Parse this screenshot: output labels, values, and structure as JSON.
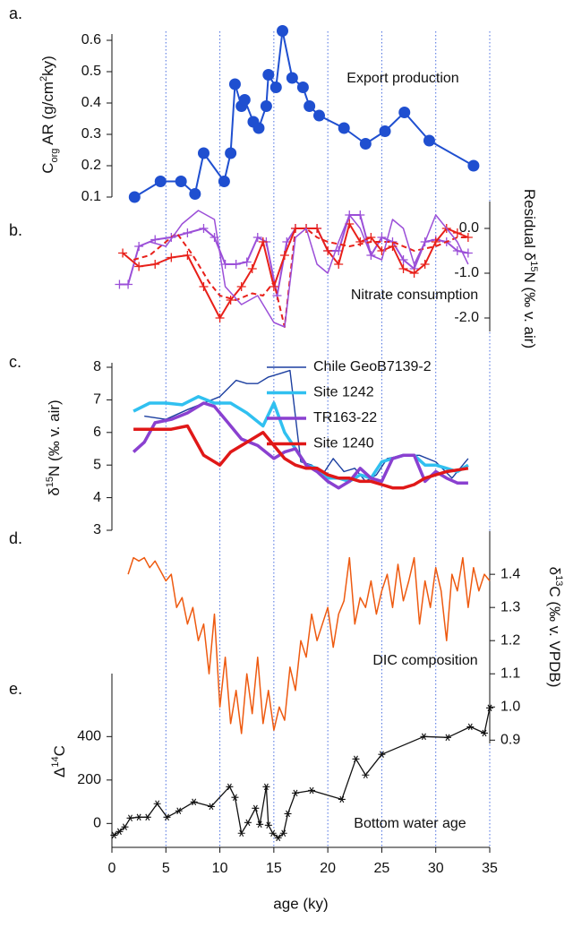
{
  "chart_data": [
    {
      "type": "line",
      "label": "a.",
      "annotation": "Export production",
      "ylabel": [
        "C",
        "org",
        " AR (g/cm",
        "2",
        "ky)"
      ],
      "xlim": [
        0,
        35
      ],
      "ylim": [
        0.1,
        0.64
      ],
      "yticks": [
        0.1,
        0.2,
        0.3,
        0.4,
        0.5,
        0.6
      ],
      "series": [
        {
          "color": "#1f4fd0",
          "marker": "circle",
          "x": [
            2.1,
            4.5,
            6.4,
            7.7,
            8.5,
            10.4,
            11.0,
            11.4,
            12.0,
            12.3,
            13.1,
            13.6,
            14.3,
            14.5,
            15.2,
            15.8,
            16.7,
            17.7,
            18.3,
            19.2,
            21.5,
            23.5,
            25.3,
            27.1,
            29.4,
            33.5
          ],
          "values": [
            0.1,
            0.15,
            0.15,
            0.11,
            0.24,
            0.15,
            0.24,
            0.46,
            0.39,
            0.41,
            0.34,
            0.32,
            0.39,
            0.49,
            0.45,
            0.63,
            0.48,
            0.45,
            0.39,
            0.36,
            0.32,
            0.27,
            0.31,
            0.37,
            0.28,
            0.2
          ]
        }
      ]
    },
    {
      "type": "line",
      "label": "b.",
      "annotation": "Nitrate consumption",
      "ylabel": [
        "Residual δ",
        "15",
        "N (‰ v. air)"
      ],
      "xlim": [
        0,
        35
      ],
      "ylim": [
        -2.3,
        0.6
      ],
      "yticks": [
        {
          "value": 0,
          "label": "0.0"
        },
        {
          "value": -1,
          "label": "-1.0"
        },
        {
          "value": -2,
          "label": "-2.0"
        }
      ],
      "series": [
        {
          "color": "#9b4fd8",
          "marker": "plus",
          "x": [
            0.7,
            1.5,
            2.5,
            4,
            5.5,
            7,
            8.5,
            9.5,
            10.5,
            11.5,
            12.5,
            13.5,
            14.3,
            15.3,
            16.2,
            17,
            18,
            19,
            20,
            21,
            22,
            23,
            24,
            25,
            26,
            27,
            28,
            29,
            30,
            31,
            32,
            33
          ],
          "values": [
            -1.25,
            -1.25,
            -0.4,
            -0.25,
            -0.2,
            -0.1,
            0.0,
            -0.2,
            -0.8,
            -0.8,
            -0.75,
            -0.2,
            -0.3,
            -1.5,
            -0.3,
            0.0,
            0.0,
            0.0,
            -0.5,
            -0.5,
            0.3,
            0.3,
            -0.6,
            -0.2,
            -0.3,
            -0.7,
            -0.9,
            -0.3,
            -0.25,
            -0.3,
            -0.5,
            -0.55
          ]
        },
        {
          "color": "#e8201a",
          "marker": "plus",
          "x": [
            1,
            2.5,
            4,
            5.5,
            7,
            8.5,
            10,
            11,
            12,
            13,
            14,
            15,
            16,
            17,
            18,
            19,
            20,
            21,
            22,
            23,
            24,
            25,
            26,
            27,
            28,
            29,
            30,
            31,
            32,
            33
          ],
          "values": [
            -0.55,
            -0.85,
            -0.8,
            -0.65,
            -0.6,
            -1.3,
            -2.0,
            -1.6,
            -1.3,
            -0.9,
            -0.3,
            -1.3,
            -0.6,
            0.0,
            0.0,
            0.0,
            -0.5,
            -0.8,
            0.1,
            -0.3,
            -0.2,
            -0.5,
            -0.4,
            -0.9,
            -1.0,
            -0.8,
            -0.3,
            0.0,
            -0.1,
            -0.2
          ]
        },
        {
          "color": "#e8201a",
          "dashed": true,
          "x": [
            2,
            3.5,
            5,
            6,
            7.5,
            9,
            10,
            11.5,
            13,
            14,
            15,
            16,
            17,
            18,
            19,
            20,
            22,
            24,
            26,
            28,
            30,
            32,
            33
          ],
          "values": [
            -0.7,
            -0.6,
            -0.3,
            -0.1,
            -0.6,
            -1.2,
            -1.5,
            -1.6,
            -1.45,
            -1.5,
            -1.2,
            -2.2,
            0.0,
            0.0,
            -0.2,
            -0.3,
            -0.4,
            -0.3,
            -0.3,
            -0.5,
            -0.4,
            -0.2,
            -0.2
          ]
        },
        {
          "color": "#9b4fd8",
          "x": [
            3.5,
            5,
            6.5,
            8,
            9.5,
            10.5,
            12,
            13.5,
            15,
            16,
            17,
            18,
            19,
            20,
            21,
            22,
            23,
            24,
            25,
            26,
            27,
            28,
            29,
            30,
            31,
            32,
            33
          ],
          "values": [
            -0.3,
            -0.4,
            0.1,
            0.4,
            0.2,
            -1.3,
            -1.7,
            -1.5,
            -2.1,
            -2.2,
            -0.2,
            0.0,
            -0.8,
            -1.0,
            -0.3,
            0.3,
            0.0,
            -0.6,
            -0.7,
            0.2,
            0.0,
            -0.8,
            -0.3,
            0.3,
            0.0,
            -0.3,
            -0.8
          ]
        }
      ]
    },
    {
      "type": "line",
      "label": "c.",
      "ylabel": [
        "δ",
        "15",
        "N (‰ v. air)"
      ],
      "xlim": [
        0,
        35
      ],
      "ylim": [
        3,
        8
      ],
      "yticks": [
        3,
        4,
        5,
        6,
        7,
        8
      ],
      "series": [
        {
          "name": "Chile GeoB7139-2",
          "color": "#1c3fa0",
          "x": [
            3,
            5,
            7,
            8.5,
            10,
            11.5,
            12.5,
            13.5,
            14.5,
            15.5,
            16.5,
            17.5,
            18.5,
            19.5,
            20.5,
            21.5,
            22.5,
            23.5,
            24.5,
            25.5,
            27,
            28.5,
            30,
            31.5,
            33
          ],
          "values": [
            6.5,
            6.4,
            6.7,
            6.9,
            7.1,
            7.6,
            7.5,
            7.5,
            7.7,
            7.8,
            7.9,
            5.1,
            5.0,
            4.7,
            5.2,
            4.8,
            4.9,
            4.5,
            4.7,
            5.2,
            5.3,
            5.3,
            5.1,
            4.6,
            5.2
          ]
        },
        {
          "name": "Site 1242",
          "color": "#30c0f0",
          "x": [
            2,
            3.5,
            5,
            6.5,
            8,
            9.5,
            11,
            12.5,
            14,
            15,
            16,
            17,
            18,
            19,
            20,
            21,
            22,
            23,
            24,
            25,
            26,
            27,
            28,
            29,
            30,
            31,
            32,
            33
          ],
          "values": [
            6.65,
            6.9,
            6.9,
            6.85,
            7.1,
            6.9,
            6.9,
            6.6,
            6.2,
            6.9,
            6.0,
            5.5,
            5.0,
            4.9,
            4.6,
            4.6,
            4.5,
            4.7,
            4.6,
            5.1,
            5.2,
            5.3,
            5.3,
            5.0,
            5.0,
            4.9,
            4.8,
            5.0
          ]
        },
        {
          "name": "TR163-22",
          "color": "#8a40d0",
          "x": [
            2,
            3,
            4,
            5.5,
            7,
            8.5,
            9.5,
            10.5,
            12,
            13.5,
            15,
            16,
            17,
            18,
            19,
            20,
            21,
            22,
            23,
            24,
            25,
            26,
            27,
            28,
            29,
            30,
            31,
            32,
            33
          ],
          "values": [
            5.4,
            5.7,
            6.3,
            6.4,
            6.6,
            6.9,
            6.8,
            6.4,
            5.8,
            5.6,
            5.2,
            5.4,
            5.5,
            5.0,
            4.8,
            4.5,
            4.3,
            4.5,
            4.9,
            4.6,
            4.5,
            5.2,
            5.3,
            5.3,
            4.5,
            4.8,
            4.6,
            4.45,
            4.45
          ]
        },
        {
          "name": "Site 1240",
          "color": "#e01818",
          "x": [
            2,
            4,
            5.5,
            7,
            8.5,
            10,
            11,
            12.5,
            14,
            15,
            16,
            17,
            18,
            19,
            20,
            21,
            22,
            23,
            24,
            25,
            26,
            27,
            28,
            29,
            30,
            31,
            32,
            33
          ],
          "values": [
            6.1,
            6.1,
            6.1,
            6.2,
            5.3,
            5.0,
            5.4,
            5.7,
            6.0,
            5.6,
            5.2,
            5.0,
            4.9,
            4.9,
            4.7,
            4.6,
            4.6,
            4.5,
            4.5,
            4.4,
            4.3,
            4.3,
            4.4,
            4.6,
            4.7,
            4.8,
            4.85,
            4.9
          ]
        }
      ]
    },
    {
      "type": "line",
      "label": "d.",
      "annotation": "DIC composition",
      "ylabel": [
        "δ",
        "13",
        "C (‰ v. VPDB)"
      ],
      "xlim": [
        0,
        35
      ],
      "ylim": [
        0.89,
        1.53
      ],
      "yticks": [
        0.9,
        {
          "value": 1,
          "label": "1.0"
        },
        1.1,
        1.2,
        1.3,
        1.4
      ],
      "series": [
        {
          "color": "#ee5a10",
          "x": [
            1.5,
            2,
            2.5,
            3,
            3.5,
            4,
            4.5,
            5,
            5.5,
            6,
            6.5,
            7,
            7.5,
            8,
            8.5,
            9,
            9.5,
            10,
            10.5,
            11,
            11.5,
            12,
            12.5,
            13,
            13.5,
            14,
            14.5,
            15,
            15.5,
            16,
            16.5,
            17,
            17.5,
            18,
            18.5,
            19,
            19.5,
            20,
            20.5,
            21,
            21.5,
            22,
            22.5,
            23,
            23.5,
            24,
            24.5,
            25,
            25.5,
            26,
            26.5,
            27,
            27.5,
            28,
            28.5,
            29,
            29.5,
            30,
            30.5,
            31,
            31.5,
            32,
            32.5,
            33,
            33.5,
            34,
            34.5,
            35
          ],
          "values": [
            1.4,
            1.45,
            1.44,
            1.45,
            1.42,
            1.44,
            1.41,
            1.38,
            1.4,
            1.3,
            1.33,
            1.25,
            1.3,
            1.2,
            1.25,
            1.1,
            1.28,
            1.0,
            1.15,
            0.95,
            1.05,
            0.92,
            1.1,
            0.98,
            1.15,
            0.95,
            1.05,
            0.93,
            1.0,
            0.96,
            1.12,
            1.05,
            1.2,
            1.15,
            1.28,
            1.2,
            1.25,
            1.3,
            1.18,
            1.28,
            1.32,
            1.45,
            1.25,
            1.33,
            1.3,
            1.38,
            1.28,
            1.35,
            1.4,
            1.3,
            1.43,
            1.32,
            1.38,
            1.45,
            1.25,
            1.38,
            1.3,
            1.42,
            1.35,
            1.2,
            1.4,
            1.35,
            1.45,
            1.3,
            1.42,
            1.35,
            1.4,
            1.38
          ]
        }
      ]
    },
    {
      "type": "line",
      "label": "e.",
      "annotation": "Bottom water age",
      "ylabel": [
        "Δ",
        "14",
        "C"
      ],
      "xlabel": "age (ky)",
      "xlim": [
        0,
        35
      ],
      "ylim": [
        -110,
        690
      ],
      "yticks": [
        0,
        200,
        400
      ],
      "xticks": [
        0,
        5,
        10,
        15,
        20,
        25,
        30,
        35
      ],
      "grid": true,
      "series": [
        {
          "color": "#111111",
          "marker": "asterisk",
          "x": [
            0.2,
            0.7,
            1.2,
            1.7,
            2.5,
            3.3,
            4.2,
            5.1,
            6.2,
            7.6,
            9.2,
            10.9,
            11.4,
            12.0,
            12.6,
            13.3,
            13.7,
            14.3,
            14.5,
            14.9,
            15.4,
            15.9,
            16.3,
            17.0,
            18.5,
            21.3,
            22.6,
            23.5,
            25.0,
            28.9,
            31.1,
            33.2,
            34.5,
            35.0
          ],
          "values": [
            -54,
            -37,
            -16,
            25,
            29,
            29,
            91,
            29,
            58,
            99,
            78,
            169,
            120,
            -45,
            4,
            70,
            -4,
            169,
            -8,
            -45,
            -66,
            -45,
            45,
            140,
            152,
            111,
            297,
            223,
            318,
            400,
            396,
            445,
            416,
            532
          ]
        }
      ]
    }
  ]
}
